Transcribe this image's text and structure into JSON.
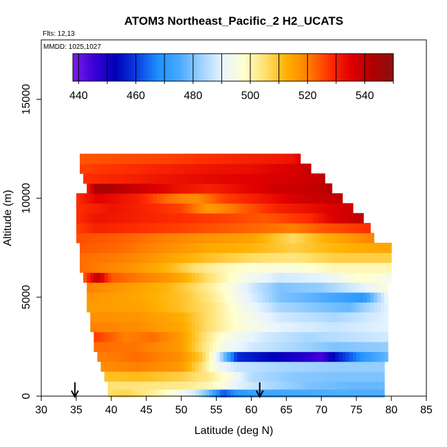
{
  "chart_data": {
    "type": "heatmap",
    "title": "ATOM3 Northeast_Pacific_2 H2_UCATS",
    "flights_label": "Flts: 12,13",
    "date_label": "MMDD: 1025,1027",
    "xlabel": "Latitude (deg N)",
    "ylabel": "Altitude (m)",
    "xlim": [
      30,
      85
    ],
    "ylim": [
      0,
      18000
    ],
    "x_ticks": [
      "30",
      "35",
      "40",
      "45",
      "50",
      "55",
      "60",
      "65",
      "70",
      "75",
      "80",
      "85"
    ],
    "y_ticks": [
      "0",
      "5000",
      "10000",
      "15000"
    ],
    "colorbar": {
      "range": [
        438,
        550
      ],
      "tick_labels": [
        "440",
        "460",
        "480",
        "500",
        "520",
        "540"
      ],
      "tick_values": [
        440,
        460,
        480,
        500,
        520,
        540
      ],
      "gradient_stops": [
        "#7a1ee8",
        "#3a00d6",
        "#0000b8",
        "#0a3fe0",
        "#1e90ff",
        "#4aaaff",
        "#9ed2ff",
        "#e8f4ff",
        "#ffffd0",
        "#ffe070",
        "#ffb000",
        "#ff8000",
        "#ff3000",
        "#e00000",
        "#b00000",
        "#8c1010"
      ]
    },
    "arrows_latitude": [
      34.8,
      61.2
    ],
    "altitude_bins": [
      {
        "z": 200,
        "lat_range": [
          39.5,
          79
        ],
        "segments": [
          [
            39.5,
            505
          ],
          [
            42,
            507
          ],
          [
            45,
            503
          ],
          [
            48,
            498
          ],
          [
            52,
            488
          ],
          [
            54,
            478
          ],
          [
            56,
            462
          ],
          [
            58,
            470
          ],
          [
            62,
            474
          ],
          [
            66,
            475
          ],
          [
            72,
            476
          ],
          [
            79,
            476
          ]
        ]
      },
      {
        "z": 600,
        "lat_range": [
          39.5,
          79
        ],
        "segments": [
          [
            39.5,
            505
          ],
          [
            44,
            504
          ],
          [
            50,
            503
          ],
          [
            54,
            500
          ],
          [
            56,
            495
          ],
          [
            58,
            490
          ],
          [
            62,
            485
          ],
          [
            68,
            480
          ],
          [
            74,
            478
          ],
          [
            79,
            478
          ]
        ]
      },
      {
        "z": 1000,
        "lat_range": [
          39,
          79
        ],
        "segments": [
          [
            39,
            510
          ],
          [
            44,
            511
          ],
          [
            50,
            508
          ],
          [
            54,
            503
          ],
          [
            57,
            495
          ],
          [
            60,
            485
          ],
          [
            66,
            481
          ],
          [
            72,
            480
          ],
          [
            79,
            480
          ]
        ]
      },
      {
        "z": 1500,
        "lat_range": [
          38.5,
          79
        ],
        "segments": [
          [
            38.5,
            518
          ],
          [
            44,
            520
          ],
          [
            50,
            516
          ],
          [
            53,
            505
          ],
          [
            55,
            493
          ],
          [
            58,
            487
          ],
          [
            64,
            484
          ],
          [
            72,
            482
          ],
          [
            79,
            482
          ]
        ]
      },
      {
        "z": 2000,
        "lat_range": [
          38,
          79.5
        ],
        "segments": [
          [
            38,
            520
          ],
          [
            44,
            522
          ],
          [
            50,
            518
          ],
          [
            53,
            508
          ],
          [
            55,
            492
          ],
          [
            58,
            458
          ],
          [
            64,
            452
          ],
          [
            68,
            448
          ],
          [
            70,
            444
          ],
          [
            72,
            455
          ],
          [
            76,
            470
          ],
          [
            79.5,
            478
          ]
        ]
      },
      {
        "z": 2500,
        "lat_range": [
          37.5,
          79.5
        ],
        "segments": [
          [
            37.5,
            522
          ],
          [
            44,
            521
          ],
          [
            50,
            516
          ],
          [
            53,
            505
          ],
          [
            56,
            494
          ],
          [
            60,
            488
          ],
          [
            66,
            484
          ],
          [
            72,
            480
          ],
          [
            79.5,
            482
          ]
        ]
      },
      {
        "z": 3000,
        "lat_range": [
          37.5,
          79.5
        ],
        "segments": [
          [
            37.5,
            527
          ],
          [
            42,
            520
          ],
          [
            46,
            522
          ],
          [
            50,
            516
          ],
          [
            53,
            506
          ],
          [
            56,
            496
          ],
          [
            62,
            488
          ],
          [
            68,
            484
          ],
          [
            74,
            486
          ],
          [
            79.5,
            488
          ]
        ]
      },
      {
        "z": 3500,
        "lat_range": [
          37,
          79.5
        ],
        "segments": [
          [
            37,
            520
          ],
          [
            44,
            518
          ],
          [
            50,
            514
          ],
          [
            54,
            505
          ],
          [
            58,
            497
          ],
          [
            64,
            490
          ],
          [
            72,
            487
          ],
          [
            79.5,
            490
          ]
        ]
      },
      {
        "z": 4000,
        "lat_range": [
          37,
          79.5
        ],
        "segments": [
          [
            37,
            518
          ],
          [
            44,
            517
          ],
          [
            50,
            513
          ],
          [
            54,
            505
          ],
          [
            58,
            497
          ],
          [
            64,
            488
          ],
          [
            72,
            484
          ],
          [
            79.5,
            490
          ]
        ]
      },
      {
        "z": 4500,
        "lat_range": [
          36.5,
          79.5
        ],
        "segments": [
          [
            36.5,
            516
          ],
          [
            44,
            515
          ],
          [
            50,
            510
          ],
          [
            54,
            505
          ],
          [
            58,
            496
          ],
          [
            64,
            484
          ],
          [
            70,
            480
          ],
          [
            74,
            478
          ],
          [
            79.5,
            490
          ]
        ]
      },
      {
        "z": 5000,
        "lat_range": [
          36.5,
          79.5
        ],
        "segments": [
          [
            36.5,
            517
          ],
          [
            44,
            514
          ],
          [
            50,
            510
          ],
          [
            54,
            504
          ],
          [
            58,
            494
          ],
          [
            64,
            480
          ],
          [
            70,
            476
          ],
          [
            76,
            470
          ],
          [
            79.5,
            492
          ]
        ]
      },
      {
        "z": 5500,
        "lat_range": [
          36.5,
          79.5
        ],
        "segments": [
          [
            36.5,
            520
          ],
          [
            42,
            516
          ],
          [
            48,
            512
          ],
          [
            52,
            506
          ],
          [
            56,
            498
          ],
          [
            60,
            488
          ],
          [
            64,
            480
          ],
          [
            70,
            482
          ],
          [
            76,
            490
          ],
          [
            79.5,
            496
          ]
        ]
      },
      {
        "z": 6000,
        "lat_range": [
          36,
          80
        ],
        "segments": [
          [
            36,
            523
          ],
          [
            38,
            540
          ],
          [
            40,
            524
          ],
          [
            46,
            519
          ],
          [
            50,
            514
          ],
          [
            54,
            505
          ],
          [
            58,
            496
          ],
          [
            64,
            488
          ],
          [
            70,
            490
          ],
          [
            76,
            498
          ],
          [
            80,
            494
          ]
        ]
      },
      {
        "z": 6500,
        "lat_range": [
          35.5,
          80
        ],
        "segments": [
          [
            35.5,
            522
          ],
          [
            42,
            518
          ],
          [
            48,
            512
          ],
          [
            52,
            505
          ],
          [
            56,
            500
          ],
          [
            60,
            497
          ],
          [
            66,
            496
          ],
          [
            72,
            500
          ],
          [
            80,
            500
          ]
        ]
      },
      {
        "z": 7000,
        "lat_range": [
          35.5,
          80
        ],
        "segments": [
          [
            35.5,
            522
          ],
          [
            42,
            520
          ],
          [
            48,
            515
          ],
          [
            54,
            510
          ],
          [
            60,
            506
          ],
          [
            66,
            504
          ],
          [
            72,
            508
          ],
          [
            80,
            508
          ]
        ]
      },
      {
        "z": 7500,
        "lat_range": [
          35.5,
          80
        ],
        "segments": [
          [
            35.5,
            524
          ],
          [
            42,
            522
          ],
          [
            48,
            518
          ],
          [
            54,
            514
          ],
          [
            60,
            512
          ],
          [
            66,
            508
          ],
          [
            72,
            512
          ],
          [
            78,
            514
          ]
        ]
      },
      {
        "z": 8000,
        "lat_range": [
          35,
          77.5
        ],
        "segments": [
          [
            35,
            525
          ],
          [
            42,
            523
          ],
          [
            48,
            520
          ],
          [
            54,
            517
          ],
          [
            60,
            515
          ],
          [
            66,
            506
          ],
          [
            70,
            512
          ],
          [
            77.5,
            520
          ]
        ]
      },
      {
        "z": 8500,
        "lat_range": [
          35,
          77
        ],
        "segments": [
          [
            35,
            526
          ],
          [
            38,
            530
          ],
          [
            44,
            528
          ],
          [
            50,
            526
          ],
          [
            56,
            524
          ],
          [
            62,
            522
          ],
          [
            66,
            520
          ],
          [
            70,
            524
          ],
          [
            77,
            528
          ]
        ]
      },
      {
        "z": 9000,
        "lat_range": [
          35,
          76
        ],
        "segments": [
          [
            35,
            528
          ],
          [
            38,
            532
          ],
          [
            44,
            530
          ],
          [
            50,
            528
          ],
          [
            56,
            526
          ],
          [
            62,
            524
          ],
          [
            68,
            528
          ],
          [
            72,
            536
          ],
          [
            76,
            540
          ]
        ]
      },
      {
        "z": 9500,
        "lat_range": [
          35,
          74.5
        ],
        "segments": [
          [
            35,
            528
          ],
          [
            40,
            532
          ],
          [
            44,
            530
          ],
          [
            50,
            526
          ],
          [
            54,
            516
          ],
          [
            58,
            522
          ],
          [
            64,
            530
          ],
          [
            70,
            534
          ],
          [
            74.5,
            538
          ]
        ]
      },
      {
        "z": 10000,
        "lat_range": [
          35,
          73
        ],
        "segments": [
          [
            35,
            528
          ],
          [
            38,
            535
          ],
          [
            44,
            530
          ],
          [
            48,
            522
          ],
          [
            52,
            518
          ],
          [
            56,
            526
          ],
          [
            62,
            532
          ],
          [
            68,
            538
          ],
          [
            73,
            540
          ]
        ]
      },
      {
        "z": 10500,
        "lat_range": [
          36.5,
          71.5
        ],
        "segments": [
          [
            36.5,
            530
          ],
          [
            38,
            545
          ],
          [
            42,
            540
          ],
          [
            46,
            536
          ],
          [
            50,
            532
          ],
          [
            54,
            530
          ],
          [
            58,
            533
          ],
          [
            64,
            538
          ],
          [
            70,
            540
          ],
          [
            71.5,
            542
          ]
        ]
      },
      {
        "z": 11000,
        "lat_range": [
          36,
          70.5
        ],
        "segments": [
          [
            36,
            528
          ],
          [
            42,
            530
          ],
          [
            48,
            532
          ],
          [
            54,
            534
          ],
          [
            60,
            535
          ],
          [
            66,
            537
          ],
          [
            70.5,
            540
          ]
        ]
      },
      {
        "z": 11500,
        "lat_range": [
          35.5,
          68.5
        ],
        "segments": [
          [
            35.5,
            526
          ],
          [
            42,
            528
          ],
          [
            48,
            530
          ],
          [
            54,
            532
          ],
          [
            60,
            533
          ],
          [
            66,
            536
          ],
          [
            68.5,
            540
          ]
        ]
      },
      {
        "z": 12000,
        "lat_range": [
          35.5,
          67
        ],
        "segments": [
          [
            35.5,
            524
          ],
          [
            42,
            525
          ],
          [
            48,
            526
          ],
          [
            54,
            528
          ],
          [
            60,
            530
          ],
          [
            66,
            532
          ],
          [
            67,
            536
          ]
        ]
      }
    ],
    "band_height_m": 500
  }
}
